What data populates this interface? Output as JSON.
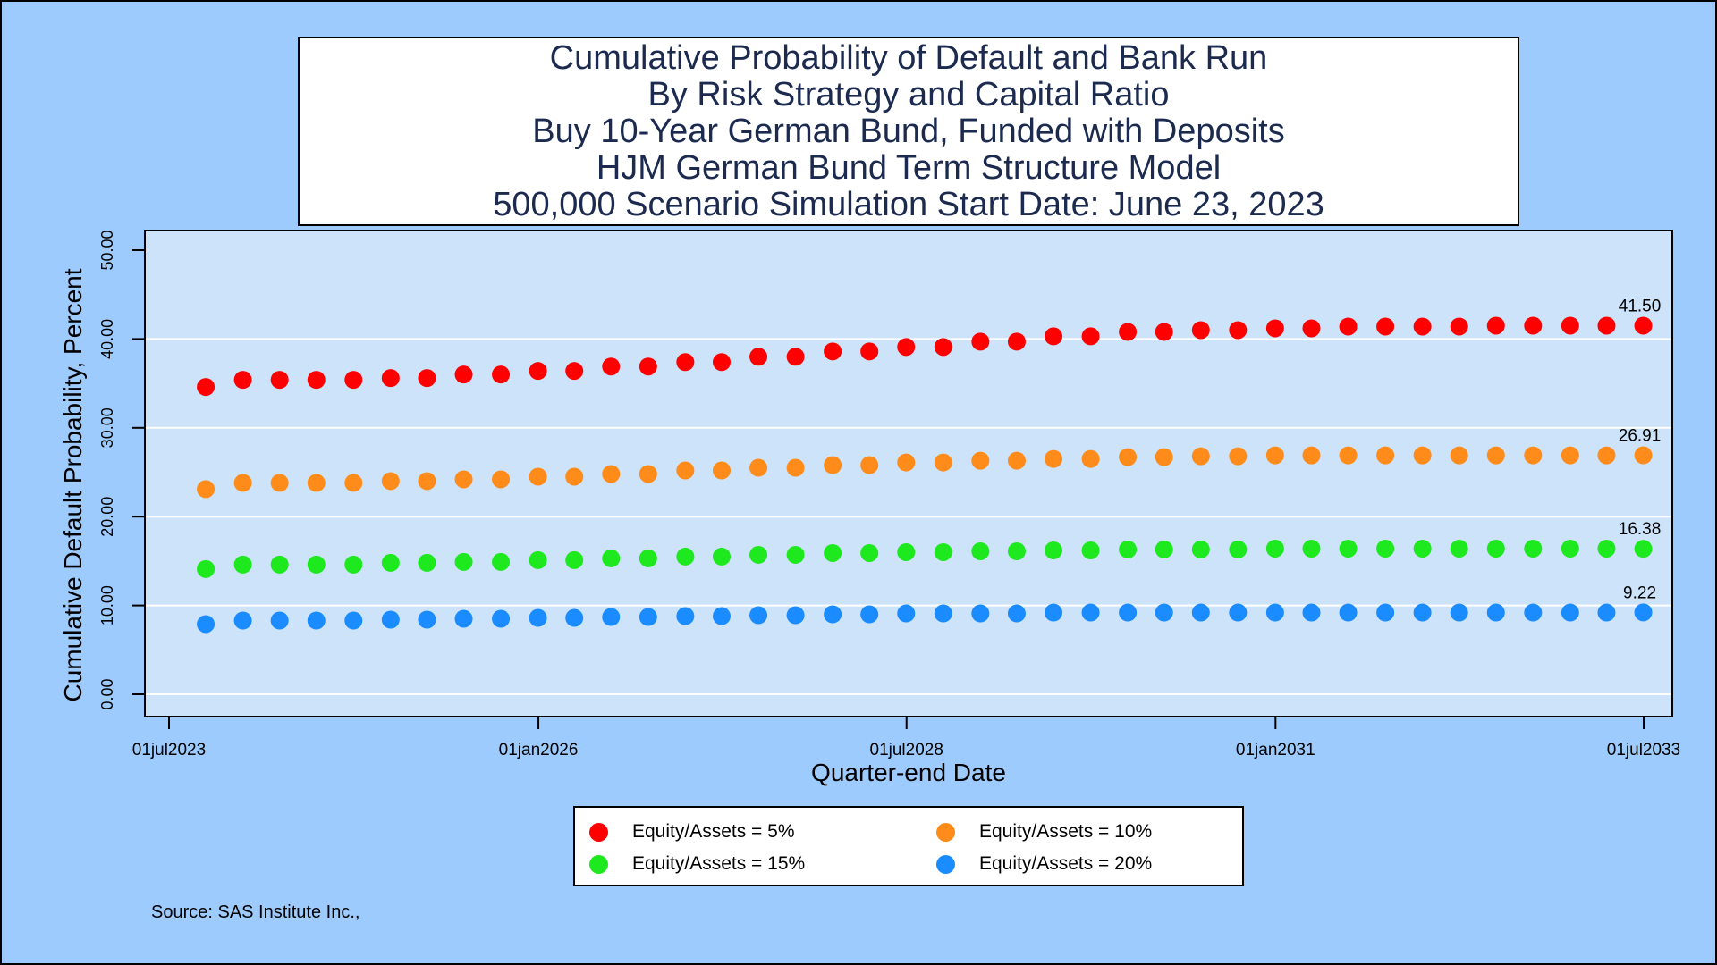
{
  "title_lines": [
    "Cumulative Probability of Default and Bank Run",
    "By Risk Strategy and Capital Ratio",
    "Buy 10-Year German Bund, Funded with Deposits",
    "HJM German Bund Term Structure Model",
    "500,000 Scenario Simulation Start Date: June 23, 2023"
  ],
  "source": "Source: SAS Institute Inc.,",
  "colors": {
    "background": "#9ecbfd",
    "plot_area": "#cde3fa",
    "gridline": "#ffffff",
    "title_text": "#1b2a4e"
  },
  "chart_data": {
    "type": "scatter",
    "xlabel": "Quarter-end Date",
    "ylabel": "Cumulative Default Probability, Percent",
    "ylim": [
      0,
      50
    ],
    "xlim": [
      "2023-07-01",
      "2033-07-01"
    ],
    "y_ticks": [
      "0.00",
      "10.00",
      "20.00",
      "30.00",
      "40.00",
      "50.00"
    ],
    "x_ticks": [
      {
        "date": "2023-07-01",
        "label": "01jul2023"
      },
      {
        "date": "2026-01-01",
        "label": "01jan2026"
      },
      {
        "date": "2028-07-01",
        "label": "01jul2028"
      },
      {
        "date": "2031-01-01",
        "label": "01jan2031"
      },
      {
        "date": "2033-07-01",
        "label": "01jul2033"
      }
    ],
    "grid": "horizontal",
    "legend_position": "bottom",
    "x": [
      "2023-09-30",
      "2023-12-31",
      "2024-03-31",
      "2024-06-30",
      "2024-09-30",
      "2024-12-31",
      "2025-03-31",
      "2025-06-30",
      "2025-09-30",
      "2025-12-31",
      "2026-03-31",
      "2026-06-30",
      "2026-09-30",
      "2026-12-31",
      "2027-03-31",
      "2027-06-30",
      "2027-09-30",
      "2027-12-31",
      "2028-03-31",
      "2028-06-30",
      "2028-09-30",
      "2028-12-31",
      "2029-03-31",
      "2029-06-30",
      "2029-09-30",
      "2029-12-31",
      "2030-03-31",
      "2030-06-30",
      "2030-09-30",
      "2030-12-31",
      "2031-03-31",
      "2031-06-30",
      "2031-09-30",
      "2031-12-31",
      "2032-03-31",
      "2032-06-30",
      "2032-09-30",
      "2032-12-31",
      "2033-03-31",
      "2033-06-30"
    ],
    "series": [
      {
        "name": "Equity/Assets = 5%",
        "color": "#ff0000",
        "end_label": "41.50",
        "values": [
          34.6,
          35.4,
          35.4,
          35.4,
          35.4,
          35.6,
          35.6,
          36.0,
          36.0,
          36.4,
          36.4,
          36.9,
          36.9,
          37.4,
          37.4,
          38.0,
          38.0,
          38.6,
          38.6,
          39.1,
          39.1,
          39.7,
          39.7,
          40.3,
          40.3,
          40.8,
          40.8,
          41.0,
          41.0,
          41.2,
          41.2,
          41.4,
          41.4,
          41.4,
          41.4,
          41.5,
          41.5,
          41.5,
          41.5,
          41.5
        ]
      },
      {
        "name": "Equity/Assets = 10%",
        "color": "#ff8c1a",
        "end_label": "26.91",
        "values": [
          23.1,
          23.8,
          23.8,
          23.8,
          23.8,
          24.0,
          24.0,
          24.2,
          24.2,
          24.5,
          24.5,
          24.8,
          24.8,
          25.2,
          25.2,
          25.5,
          25.5,
          25.8,
          25.8,
          26.1,
          26.1,
          26.3,
          26.3,
          26.5,
          26.5,
          26.7,
          26.7,
          26.8,
          26.8,
          26.9,
          26.9,
          26.9,
          26.9,
          26.9,
          26.9,
          26.9,
          26.9,
          26.9,
          26.9,
          26.91
        ]
      },
      {
        "name": "Equity/Assets = 15%",
        "color": "#1ee81e",
        "end_label": "16.38",
        "values": [
          14.1,
          14.6,
          14.6,
          14.6,
          14.6,
          14.8,
          14.8,
          14.9,
          14.9,
          15.1,
          15.1,
          15.3,
          15.3,
          15.5,
          15.5,
          15.7,
          15.7,
          15.9,
          15.9,
          16.0,
          16.0,
          16.1,
          16.1,
          16.2,
          16.2,
          16.3,
          16.3,
          16.3,
          16.3,
          16.4,
          16.4,
          16.4,
          16.4,
          16.4,
          16.4,
          16.4,
          16.4,
          16.4,
          16.4,
          16.38
        ]
      },
      {
        "name": "Equity/Assets = 20%",
        "color": "#1a8cff",
        "end_label": "9.22",
        "values": [
          7.9,
          8.3,
          8.3,
          8.3,
          8.3,
          8.4,
          8.4,
          8.5,
          8.5,
          8.6,
          8.6,
          8.7,
          8.7,
          8.8,
          8.8,
          8.9,
          8.9,
          9.0,
          9.0,
          9.1,
          9.1,
          9.1,
          9.1,
          9.2,
          9.2,
          9.2,
          9.2,
          9.2,
          9.2,
          9.2,
          9.2,
          9.2,
          9.2,
          9.2,
          9.2,
          9.2,
          9.2,
          9.2,
          9.2,
          9.22
        ]
      }
    ]
  }
}
